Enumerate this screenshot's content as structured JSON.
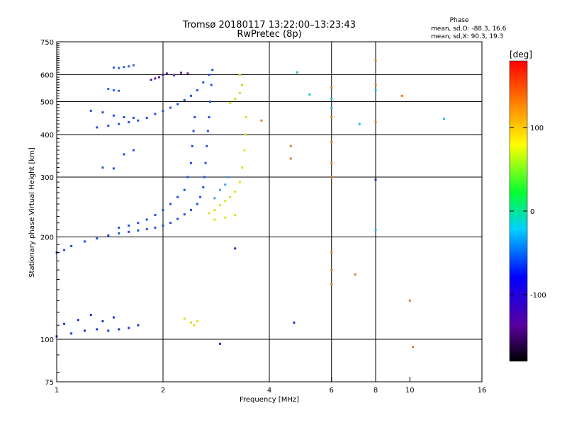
{
  "chart_data": {
    "type": "scatter",
    "title": "Tromsø 20180117 13:22:00–13:23:43",
    "subtitle": "RwPretec (8p)",
    "xlabel": "Frequency [MHz]",
    "ylabel": "Stationary phase Virtual Height [km]",
    "x_scale": "log",
    "y_scale": "log",
    "xlim": [
      1,
      16
    ],
    "ylim": [
      75,
      750
    ],
    "x_ticks": [
      1,
      2,
      4,
      6,
      8,
      10,
      16
    ],
    "y_ticks": [
      75,
      100,
      200,
      300,
      400,
      500,
      600,
      750
    ],
    "x_gridlines": [
      2,
      4,
      6,
      8
    ],
    "y_gridlines": [
      100,
      200,
      300,
      400,
      500,
      600
    ],
    "grid": true,
    "phase_box": {
      "heading": "Phase",
      "line_o": "mean, sd,O: -88.3, 16.6",
      "line_x": "mean, sd,X:  90.3, 19.3"
    },
    "colorbar": {
      "label": "[deg]",
      "range": [
        -180,
        180
      ],
      "ticks": [
        -100,
        0,
        100
      ]
    },
    "series": [
      {
        "color": "#2050e0",
        "phase": -90,
        "points": [
          [
            1.0,
            180
          ],
          [
            1.05,
            183
          ],
          [
            1.1,
            188
          ],
          [
            1.2,
            194
          ],
          [
            1.3,
            198
          ],
          [
            1.4,
            202
          ],
          [
            1.5,
            205
          ],
          [
            1.6,
            207
          ],
          [
            1.7,
            209
          ],
          [
            1.8,
            211
          ],
          [
            1.9,
            213
          ],
          [
            2.0,
            216
          ],
          [
            2.1,
            220
          ],
          [
            2.2,
            226
          ],
          [
            2.3,
            233
          ],
          [
            2.4,
            240
          ],
          [
            2.5,
            250
          ],
          [
            2.55,
            262
          ],
          [
            2.6,
            280
          ],
          [
            2.62,
            300
          ],
          [
            2.64,
            330
          ],
          [
            2.66,
            370
          ],
          [
            2.68,
            410
          ],
          [
            2.7,
            450
          ],
          [
            2.72,
            500
          ],
          [
            2.74,
            560
          ],
          [
            2.76,
            620
          ]
        ]
      },
      {
        "color": "#2050e0",
        "phase": -90,
        "points": [
          [
            1.5,
            213
          ],
          [
            1.6,
            216
          ],
          [
            1.7,
            220
          ],
          [
            1.8,
            225
          ],
          [
            1.9,
            232
          ],
          [
            2.0,
            240
          ],
          [
            2.1,
            250
          ],
          [
            2.2,
            262
          ],
          [
            2.3,
            275
          ],
          [
            2.35,
            300
          ],
          [
            2.4,
            330
          ],
          [
            2.42,
            370
          ],
          [
            2.44,
            410
          ],
          [
            2.46,
            450
          ]
        ]
      },
      {
        "color": "#1838d0",
        "phase": -100,
        "points": [
          [
            1.0,
            102
          ],
          [
            1.1,
            104
          ],
          [
            1.2,
            106
          ],
          [
            1.3,
            107
          ],
          [
            1.4,
            106
          ],
          [
            1.5,
            107
          ],
          [
            1.6,
            108
          ],
          [
            1.7,
            110
          ],
          [
            1.05,
            111
          ],
          [
            1.15,
            114
          ],
          [
            1.25,
            118
          ],
          [
            1.35,
            113
          ],
          [
            1.45,
            116
          ]
        ]
      },
      {
        "color": "#2050e0",
        "phase": -95,
        "points": [
          [
            1.3,
            420
          ],
          [
            1.4,
            425
          ],
          [
            1.5,
            430
          ],
          [
            1.6,
            435
          ],
          [
            1.7,
            440
          ],
          [
            1.8,
            448
          ],
          [
            1.9,
            460
          ],
          [
            2.0,
            470
          ],
          [
            2.1,
            480
          ],
          [
            2.2,
            492
          ],
          [
            2.3,
            505
          ],
          [
            2.4,
            520
          ],
          [
            2.5,
            540
          ],
          [
            2.6,
            570
          ],
          [
            2.7,
            600
          ]
        ]
      },
      {
        "color": "#2050e0",
        "phase": -95,
        "points": [
          [
            1.25,
            470
          ],
          [
            1.35,
            465
          ],
          [
            1.45,
            455
          ],
          [
            1.55,
            450
          ],
          [
            1.65,
            448
          ],
          [
            1.35,
            320
          ],
          [
            1.45,
            318
          ],
          [
            1.55,
            350
          ],
          [
            1.65,
            360
          ]
        ]
      },
      {
        "color": "#3060e8",
        "phase": -85,
        "points": [
          [
            1.45,
            630
          ],
          [
            1.5,
            628
          ],
          [
            1.55,
            632
          ],
          [
            1.6,
            635
          ],
          [
            1.65,
            640
          ],
          [
            1.4,
            545
          ],
          [
            1.45,
            540
          ],
          [
            1.5,
            538
          ]
        ]
      },
      {
        "color": "#5020a0",
        "phase": -120,
        "points": [
          [
            1.85,
            580
          ],
          [
            1.9,
            585
          ],
          [
            1.95,
            590
          ],
          [
            2.0,
            600
          ],
          [
            2.05,
            605
          ],
          [
            2.15,
            598
          ],
          [
            2.25,
            608
          ],
          [
            2.35,
            605
          ]
        ]
      },
      {
        "color": "#e0e020",
        "phase": 110,
        "points": [
          [
            2.7,
            235
          ],
          [
            2.8,
            240
          ],
          [
            2.9,
            248
          ],
          [
            3.0,
            255
          ],
          [
            3.1,
            262
          ],
          [
            3.2,
            272
          ],
          [
            3.3,
            290
          ],
          [
            3.35,
            320
          ],
          [
            3.4,
            360
          ],
          [
            3.42,
            400
          ],
          [
            3.44,
            450
          ],
          [
            2.8,
            225
          ],
          [
            3.0,
            228
          ],
          [
            3.2,
            232
          ]
        ]
      },
      {
        "color": "#c8e020",
        "phase": 90,
        "points": [
          [
            3.1,
            495
          ],
          [
            3.2,
            510
          ],
          [
            3.3,
            530
          ],
          [
            3.35,
            560
          ],
          [
            3.3,
            600
          ]
        ]
      },
      {
        "color": "#40a0e0",
        "phase": -30,
        "points": [
          [
            2.8,
            260
          ],
          [
            2.9,
            275
          ],
          [
            3.0,
            285
          ],
          [
            3.05,
            300
          ]
        ]
      },
      {
        "color": "#e0e020",
        "phase": 100,
        "points": [
          [
            2.3,
            115
          ],
          [
            2.4,
            112
          ],
          [
            2.5,
            113
          ],
          [
            2.45,
            110
          ]
        ]
      },
      {
        "color": "#e08020",
        "phase": 140,
        "points": [
          [
            6.0,
            550
          ],
          [
            6.0,
            450
          ],
          [
            6.0,
            380
          ],
          [
            6.0,
            330
          ],
          [
            6.0,
            300
          ],
          [
            6.0,
            180
          ],
          [
            6.0,
            160
          ],
          [
            6.0,
            145
          ],
          [
            7.0,
            155
          ],
          [
            8.0,
            660
          ],
          [
            8.0,
            560
          ],
          [
            8.0,
            435
          ],
          [
            9.5,
            520
          ],
          [
            10.0,
            130
          ],
          [
            10.2,
            95
          ],
          [
            3.8,
            440
          ],
          [
            4.6,
            370
          ],
          [
            4.6,
            340
          ]
        ]
      },
      {
        "color": "#20c0d0",
        "phase": 10,
        "points": [
          [
            6.0,
            510
          ],
          [
            6.0,
            480
          ],
          [
            7.2,
            430
          ],
          [
            8.0,
            540
          ],
          [
            12.5,
            445
          ],
          [
            4.8,
            610
          ],
          [
            5.2,
            525
          ],
          [
            8.0,
            210
          ]
        ]
      },
      {
        "color": "#1830c0",
        "phase": -110,
        "points": [
          [
            4.7,
            112
          ],
          [
            8.0,
            295
          ],
          [
            3.2,
            185
          ],
          [
            2.9,
            97
          ]
        ]
      }
    ]
  }
}
